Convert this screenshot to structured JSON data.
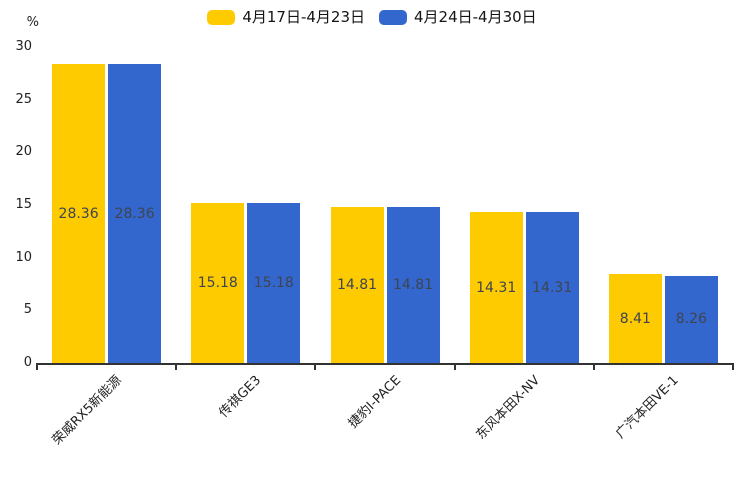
{
  "chart_data": {
    "type": "bar",
    "title": "",
    "categories": [
      "荣威RX5新能源",
      "传祺GE3",
      "捷豹I-PACE",
      "东风本田X-NV",
      "广汽本田VE-1"
    ],
    "series": [
      {
        "name": "4月17日-4月23日",
        "color": "#FECB00",
        "values": [
          28.36,
          15.18,
          14.81,
          14.31,
          8.41
        ]
      },
      {
        "name": "4月24日-4月30日",
        "color": "#3367CD",
        "values": [
          28.36,
          15.18,
          14.81,
          14.31,
          8.26
        ]
      }
    ],
    "value_labels": [
      [
        "28.36",
        "15.18",
        "14.81",
        "14.31",
        "8.41"
      ],
      [
        "28.36",
        "15.18",
        "14.81",
        "14.31",
        "8.26"
      ]
    ],
    "y_axis": {
      "unit": "%",
      "min": 0,
      "max": 30,
      "tick_step": 5,
      "ticks": [
        0,
        5,
        10,
        15,
        20,
        25,
        30
      ]
    },
    "x_axis": {
      "label_rotation_deg": -45
    },
    "legend_position": "top-center",
    "grid": false,
    "label_position": "inside-center",
    "background_color": "#ffffff",
    "axis_color": "#333333",
    "value_label_color": "#3f4450"
  }
}
